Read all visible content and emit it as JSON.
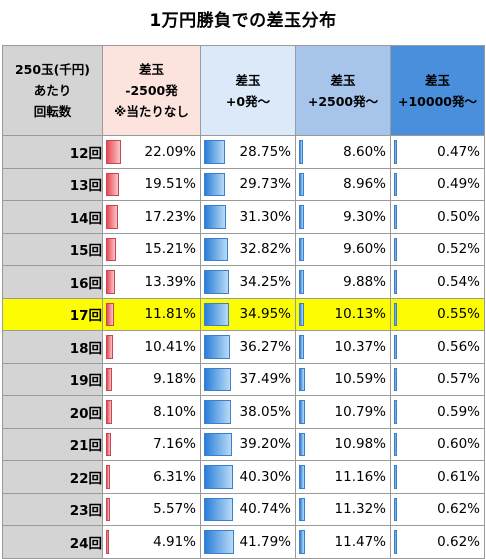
{
  "title": "1万円勝負での差玉分布",
  "header": {
    "col0": [
      "250玉(千円)",
      "あたり",
      "回転数"
    ],
    "col1": [
      "差玉",
      "-2500発",
      "※当たりなし"
    ],
    "col2": [
      "差玉",
      "+0発～"
    ],
    "col3": [
      "差玉",
      "+2500発～"
    ],
    "col4": [
      "差玉",
      "+10000発～"
    ]
  },
  "colors": {
    "highlight_row": "#fcfc03",
    "bar_red": "#e84a55",
    "bar_blue": "#2a7fd8"
  },
  "chart_data": {
    "type": "table",
    "title": "1万円勝負での差玉分布",
    "highlight_row": "17回",
    "rows": [
      {
        "label": "12回",
        "values": [
          "22.09%",
          "28.75%",
          "8.60%",
          "0.47%"
        ]
      },
      {
        "label": "13回",
        "values": [
          "19.51%",
          "29.73%",
          "8.96%",
          "0.49%"
        ]
      },
      {
        "label": "14回",
        "values": [
          "17.23%",
          "31.30%",
          "9.30%",
          "0.50%"
        ]
      },
      {
        "label": "15回",
        "values": [
          "15.21%",
          "32.82%",
          "9.60%",
          "0.52%"
        ]
      },
      {
        "label": "16回",
        "values": [
          "13.39%",
          "34.25%",
          "9.88%",
          "0.54%"
        ]
      },
      {
        "label": "17回",
        "values": [
          "11.81%",
          "34.95%",
          "10.13%",
          "0.55%"
        ]
      },
      {
        "label": "18回",
        "values": [
          "10.41%",
          "36.27%",
          "10.37%",
          "0.56%"
        ]
      },
      {
        "label": "19回",
        "values": [
          "9.18%",
          "37.49%",
          "10.59%",
          "0.57%"
        ]
      },
      {
        "label": "20回",
        "values": [
          "8.10%",
          "38.05%",
          "10.79%",
          "0.59%"
        ]
      },
      {
        "label": "21回",
        "values": [
          "7.16%",
          "39.20%",
          "10.98%",
          "0.60%"
        ]
      },
      {
        "label": "22回",
        "values": [
          "6.31%",
          "40.30%",
          "11.16%",
          "0.61%"
        ]
      },
      {
        "label": "23回",
        "values": [
          "5.57%",
          "40.74%",
          "11.32%",
          "0.62%"
        ]
      },
      {
        "label": "24回",
        "values": [
          "4.91%",
          "41.79%",
          "11.47%",
          "0.62%"
        ]
      }
    ]
  }
}
